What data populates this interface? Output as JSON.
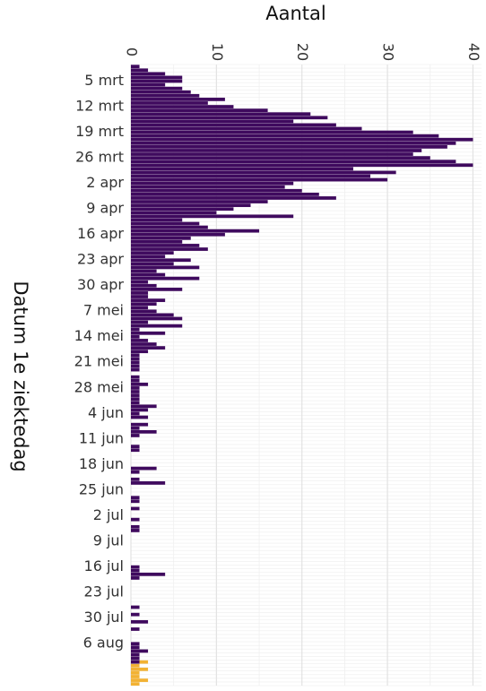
{
  "chart_data": {
    "type": "bar",
    "orientation": "horizontal",
    "xlabel": "Aantal",
    "ylabel": "Datum 1e ziektedag",
    "xlim": [
      0,
      41
    ],
    "x_ticks": [
      0,
      10,
      20,
      30,
      40
    ],
    "y_ticks": [
      "5 mrt",
      "12 mrt",
      "19 mrt",
      "26 mrt",
      "2 apr",
      "9 apr",
      "16 apr",
      "23 apr",
      "30 apr",
      "7 mei",
      "14 mei",
      "21 mei",
      "28 mei",
      "4 jun",
      "11 jun",
      "18 jun",
      "25 jun",
      "2 jul",
      "9 jul",
      "16 jul",
      "23 jul",
      "30 jul",
      "6 aug"
    ],
    "first_date": "1 mrt",
    "grid": true,
    "legend": "none",
    "colors": {
      "series1": "#3f0a5e",
      "series2": "#f2b233",
      "grid": "#e6e6e6",
      "background": "#ffffff"
    },
    "series": [
      {
        "values": [
          1,
          2,
          4,
          6,
          6,
          4,
          6,
          7,
          8,
          11,
          9,
          12,
          16,
          21,
          23,
          19,
          24,
          27,
          33,
          36,
          40,
          38,
          37,
          34,
          33,
          35,
          38,
          40,
          26,
          31,
          28,
          30,
          19,
          18,
          20,
          22,
          24,
          16,
          14,
          12,
          10,
          19,
          6,
          8,
          9,
          15,
          11,
          7,
          6,
          8,
          9,
          5,
          4,
          7,
          5,
          8,
          3,
          4,
          8,
          2,
          3,
          6,
          2,
          2,
          4,
          3,
          2,
          3,
          5,
          6,
          2,
          6,
          1,
          4,
          1,
          2,
          3,
          4,
          2,
          1,
          1,
          1,
          1,
          1,
          0,
          1,
          1,
          2,
          1,
          1,
          1,
          1,
          1,
          3,
          2,
          1,
          2,
          0,
          2,
          1,
          3,
          1,
          0,
          0,
          1,
          1,
          0,
          0,
          0,
          0,
          3,
          1,
          0,
          1,
          4,
          0,
          0,
          0,
          1,
          1,
          0,
          1,
          0,
          0,
          1,
          0,
          1,
          1,
          0,
          0,
          0,
          0,
          0,
          0,
          0,
          0,
          0,
          1,
          1,
          4,
          1,
          0,
          0,
          0,
          0,
          0,
          0,
          0,
          1,
          0,
          1,
          0,
          2,
          0,
          1,
          0,
          0,
          0,
          1,
          1,
          2,
          1,
          1,
          1,
          0,
          0,
          0,
          0,
          0,
          0
        ]
      },
      {
        "values": [
          0,
          0,
          0,
          0,
          0,
          0,
          0,
          0,
          0,
          0,
          0,
          0,
          0,
          0,
          0,
          0,
          0,
          0,
          0,
          0,
          0,
          0,
          0,
          0,
          0,
          0,
          0,
          0,
          0,
          0,
          0,
          0,
          0,
          0,
          0,
          0,
          0,
          0,
          0,
          0,
          0,
          0,
          0,
          0,
          0,
          0,
          0,
          0,
          0,
          0,
          0,
          0,
          0,
          0,
          0,
          0,
          0,
          0,
          0,
          0,
          0,
          0,
          0,
          0,
          0,
          0,
          0,
          0,
          0,
          0,
          0,
          0,
          0,
          0,
          0,
          0,
          0,
          0,
          0,
          0,
          0,
          0,
          0,
          0,
          0,
          0,
          0,
          0,
          0,
          0,
          0,
          0,
          0,
          0,
          0,
          0,
          0,
          0,
          0,
          0,
          0,
          0,
          0,
          0,
          0,
          0,
          0,
          0,
          0,
          0,
          0,
          0,
          0,
          0,
          0,
          0,
          0,
          0,
          0,
          0,
          0,
          0,
          0,
          0,
          0,
          0,
          0,
          0,
          0,
          0,
          0,
          0,
          0,
          0,
          0,
          0,
          0,
          0,
          0,
          0,
          0,
          0,
          0,
          0,
          0,
          0,
          0,
          0,
          0,
          0,
          0,
          0,
          0,
          0,
          0,
          0,
          0,
          0,
          0,
          0,
          0,
          0,
          0,
          1,
          1,
          2,
          1,
          1,
          2,
          1
        ]
      }
    ]
  }
}
